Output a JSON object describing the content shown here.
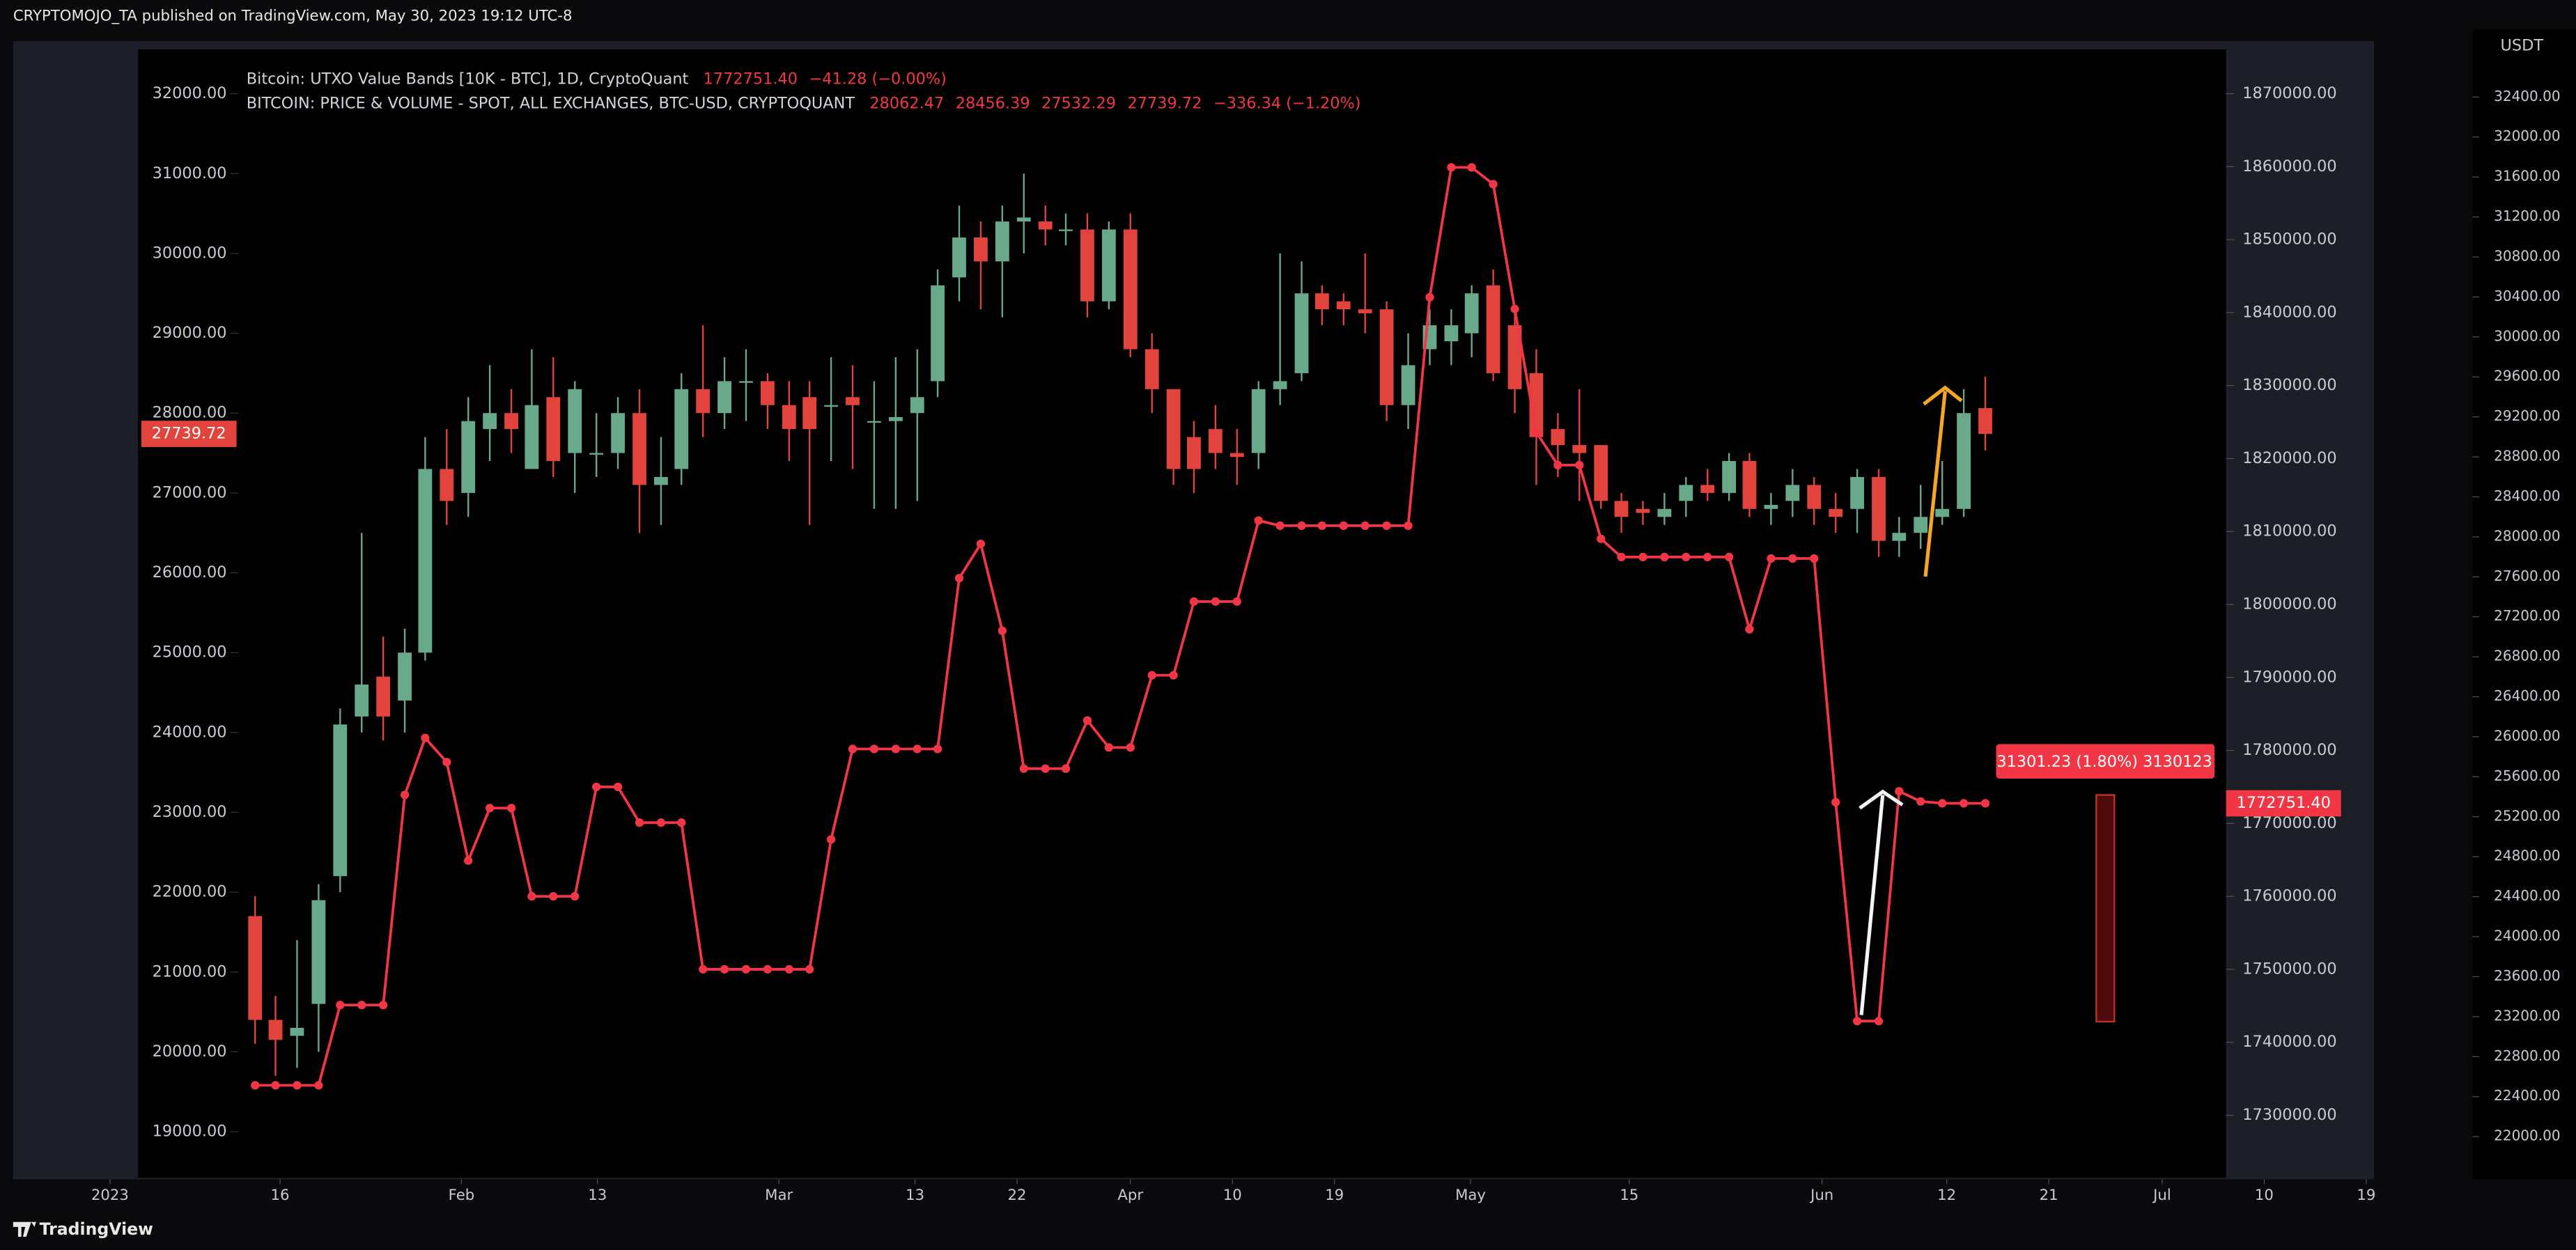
{
  "header": "CRYPTOMOJO_TA published on TradingView.com, May 30, 2023 19:12 UTC-8",
  "footer": "TradingView",
  "chart_data": {
    "type": "candlestick",
    "x": [
      13.8,
      15.6,
      17.5,
      19.4,
      21.3,
      23.2,
      25.1,
      27.0,
      28.8,
      30.7,
      32.6,
      34.5,
      36.4,
      38.2,
      40.1,
      42.0,
      43.9,
      45.8,
      47.7,
      49.6,
      51.4,
      53.3,
      55.2,
      57.1,
      59.0,
      60.9,
      62.7,
      64.6,
      66.5,
      68.4,
      70.3,
      72.2,
      74.0,
      75.9,
      77.8,
      79.7,
      81.6,
      83.5,
      85.3,
      87.2,
      89.1,
      91.0,
      92.9,
      94.8,
      96.6,
      98.5,
      100.4,
      102.3,
      104.2,
      106.1,
      107.9,
      109.8,
      111.7,
      113.6,
      115.5,
      117.4,
      119.3,
      121.1,
      123.0,
      124.9,
      126.8,
      128.7,
      130.6,
      132.5,
      134.3,
      136.2,
      138.1,
      140.0,
      141.9,
      143.8,
      145.6,
      147.5,
      149.4,
      151.3,
      153.2,
      155.1,
      157.0,
      158.8,
      160.7,
      162.6,
      164.5,
      166.4
    ],
    "xlim": [
      -8.7,
      201.4
    ],
    "xticks": [
      {
        "value": 1,
        "label": "2023"
      },
      16,
      {
        "value": 32,
        "label": "Feb"
      },
      {
        "value": 44,
        "label": "13"
      },
      {
        "value": 60,
        "label": "Mar"
      },
      {
        "value": 72,
        "label": "13"
      },
      {
        "value": 81,
        "label": "22"
      },
      {
        "value": 91,
        "label": "Apr"
      },
      {
        "value": 100,
        "label": "10"
      },
      {
        "value": 109,
        "label": "19"
      },
      {
        "value": 121,
        "label": "May"
      },
      {
        "value": 135,
        "label": "15"
      },
      {
        "value": 152,
        "label": "Jun"
      },
      {
        "value": 163,
        "label": "12"
      },
      {
        "value": 172,
        "label": "21"
      },
      {
        "value": 182,
        "label": "Jul"
      },
      {
        "value": 191,
        "label": "10"
      },
      {
        "value": 200,
        "label": "19"
      }
    ],
    "ylim": [
      18424,
      32556
    ],
    "yticks": [
      {
        "value": 19000,
        "label": "19000.00"
      },
      {
        "value": 20000,
        "label": "20000.00"
      },
      {
        "value": 21000,
        "label": "21000.00"
      },
      {
        "value": 22000,
        "label": "22000.00"
      },
      {
        "value": 23000,
        "label": "23000.00"
      },
      {
        "value": 24000,
        "label": "24000.00"
      },
      {
        "value": 25000,
        "label": "25000.00"
      },
      {
        "value": 26000,
        "label": "26000.00"
      },
      {
        "value": 27000,
        "label": "27000.00"
      },
      {
        "value": 28000,
        "label": "28000.00"
      },
      {
        "value": 29000,
        "label": "29000.00"
      },
      {
        "value": 30000,
        "label": "30000.00"
      },
      {
        "value": 31000,
        "label": "31000.00"
      },
      {
        "value": 32000,
        "label": "32000.00"
      }
    ],
    "y2lim": [
      1721447,
      1876077
    ],
    "y2ticks": [
      {
        "value": 1730000,
        "label": "1730000.00"
      },
      {
        "value": 1740000,
        "label": "1740000.00"
      },
      {
        "value": 1750000,
        "label": "1750000.00"
      },
      {
        "value": 1760000,
        "label": "1760000.00"
      },
      {
        "value": 1770000,
        "label": "1770000.00"
      },
      {
        "value": 1780000,
        "label": "1780000.00"
      },
      {
        "value": 1790000,
        "label": "1790000.00"
      },
      {
        "value": 1800000,
        "label": "1800000.00"
      },
      {
        "value": 1810000,
        "label": "1810000.00"
      },
      {
        "value": 1820000,
        "label": "1820000.00"
      },
      {
        "value": 1830000,
        "label": "1830000.00"
      },
      {
        "value": 1840000,
        "label": "1840000.00"
      },
      {
        "value": 1850000,
        "label": "1850000.00"
      },
      {
        "value": 1860000,
        "label": "1860000.00"
      },
      {
        "value": 1870000,
        "label": "1870000.00"
      }
    ],
    "y3label": "USDT",
    "y3lim": [
      21573,
      33074
    ],
    "y3ticks": [
      {
        "value": 22000,
        "label": "22000.00"
      },
      {
        "value": 22400,
        "label": "22400.00"
      },
      {
        "value": 22800,
        "label": "22800.00"
      },
      {
        "value": 23200,
        "label": "23200.00"
      },
      {
        "value": 23600,
        "label": "23600.00"
      },
      {
        "value": 24000,
        "label": "24000.00"
      },
      {
        "value": 24400,
        "label": "24400.00"
      },
      {
        "value": 24800,
        "label": "24800.00"
      },
      {
        "value": 25200,
        "label": "25200.00"
      },
      {
        "value": 25600,
        "label": "25600.00"
      },
      {
        "value": 26000,
        "label": "26000.00"
      },
      {
        "value": 26400,
        "label": "26400.00"
      },
      {
        "value": 26800,
        "label": "26800.00"
      },
      {
        "value": 27200,
        "label": "27200.00"
      },
      {
        "value": 27600,
        "label": "27600.00"
      },
      {
        "value": 28000,
        "label": "28000.00"
      },
      {
        "value": 28400,
        "label": "28400.00"
      },
      {
        "value": 28800,
        "label": "28800.00"
      },
      {
        "value": 29200,
        "label": "29200.00"
      },
      {
        "value": 29600,
        "label": "29600.00"
      },
      {
        "value": 30000,
        "label": "30000.00"
      },
      {
        "value": 30400,
        "label": "30400.00"
      },
      {
        "value": 30800,
        "label": "30800.00"
      },
      {
        "value": 31200,
        "label": "31200.00"
      },
      {
        "value": 31600,
        "label": "31600.00"
      },
      {
        "value": 32000,
        "label": "32000.00"
      },
      {
        "value": 32400,
        "label": "32400.00"
      }
    ],
    "series": [
      {
        "name": "BITCOIN: PRICE & VOLUME - SPOT, ALL EXCHANGES, BTC-USD, CRYPTOQUANT",
        "type": "candlestick",
        "up_color": "#68a98b",
        "down_color": "#e2433c",
        "legend_change": "−336.34 (−1.20%)",
        "open": [
          21700,
          20400,
          20200,
          20600,
          22200,
          24200,
          24700,
          24400,
          25000,
          27300,
          27000,
          27800,
          28000,
          27300,
          28200,
          27500,
          27500,
          27500,
          28000,
          27100,
          27300,
          28300,
          28000,
          28400,
          28400,
          28100,
          28200,
          28100,
          28200,
          27900,
          27900,
          28000,
          28400,
          29700,
          30200,
          29900,
          30400,
          30400,
          30300,
          30300,
          29400,
          30300,
          28800,
          28300,
          27700,
          27800,
          27500,
          27500,
          28300,
          28500,
          29500,
          29400,
          29300,
          29300,
          28100,
          28800,
          28900,
          29000,
          29600,
          29100,
          28500,
          27800,
          27600,
          27600,
          26900,
          26800,
          26700,
          26900,
          27100,
          27000,
          27400,
          26800,
          26900,
          27100,
          26800,
          26800,
          27200,
          26400,
          26500,
          26700,
          26800,
          28062.47
        ],
        "high": [
          21950,
          20700,
          21400,
          22100,
          24300,
          26500,
          25200,
          25300,
          27700,
          27800,
          28200,
          28600,
          28300,
          28800,
          28700,
          28400,
          28000,
          28200,
          28300,
          27700,
          28500,
          29100,
          28700,
          28800,
          28500,
          28400,
          28400,
          28700,
          28600,
          28400,
          28700,
          28800,
          29800,
          30600,
          30400,
          30600,
          31000,
          30600,
          30500,
          30500,
          30400,
          30500,
          29000,
          28300,
          27900,
          28100,
          27800,
          28400,
          30000,
          29900,
          29600,
          29500,
          30000,
          29400,
          29000,
          29300,
          29300,
          29600,
          29800,
          29300,
          28800,
          28000,
          28300,
          27600,
          27000,
          26900,
          27000,
          27200,
          27300,
          27500,
          27500,
          27000,
          27300,
          27200,
          27000,
          27300,
          27300,
          26700,
          27100,
          27400,
          28300,
          28456.39
        ],
        "low": [
          20100,
          19700,
          19800,
          20000,
          22000,
          24000,
          23900,
          24000,
          24900,
          26600,
          26700,
          27400,
          27500,
          27300,
          27200,
          27000,
          27200,
          27300,
          26500,
          26600,
          27100,
          27700,
          27800,
          27900,
          27800,
          27400,
          26600,
          27400,
          27300,
          26800,
          26800,
          26900,
          28200,
          29400,
          29300,
          29200,
          30000,
          30100,
          30100,
          29200,
          29300,
          28700,
          28000,
          27100,
          27000,
          27300,
          27100,
          27300,
          28100,
          28400,
          29100,
          29100,
          29000,
          27900,
          27800,
          28600,
          28600,
          28700,
          28400,
          28000,
          27100,
          27200,
          26900,
          26800,
          26500,
          26600,
          26600,
          26700,
          26900,
          26900,
          26700,
          26600,
          26700,
          26600,
          26500,
          26500,
          26200,
          26200,
          26300,
          26600,
          26700,
          27532.29
        ],
        "close": [
          20400,
          20150,
          20300,
          21900,
          24100,
          24600,
          24200,
          25000,
          27300,
          26900,
          27900,
          28000,
          27800,
          28100,
          27400,
          28300,
          27500,
          28000,
          27100,
          27200,
          28300,
          28000,
          28400,
          28400,
          28100,
          27800,
          27800,
          28100,
          28100,
          27900,
          27950,
          28200,
          29600,
          30200,
          29900,
          30400,
          30450,
          30300,
          30300,
          29400,
          30300,
          28800,
          28300,
          27300,
          27300,
          27500,
          27450,
          28300,
          28400,
          29500,
          29300,
          29300,
          29250,
          28100,
          28600,
          29100,
          29100,
          29500,
          28500,
          28300,
          27700,
          27600,
          27500,
          26900,
          26700,
          26750,
          26800,
          27100,
          27000,
          27400,
          26800,
          26850,
          27100,
          26800,
          26700,
          27200,
          26400,
          26500,
          26700,
          26800,
          28000,
          27739.72
        ]
      },
      {
        "name": "Bitcoin: UTXO Value Bands [10K - BTC], 1D, CryptoQuant",
        "type": "line",
        "axis": "y2",
        "color": "#f23645",
        "legend_value": "1772751.40",
        "legend_change": "−41.28 (−0.00%)",
        "values": [
          1734100,
          1734100,
          1734100,
          1734100,
          1745100,
          1745100,
          1745100,
          1773900,
          1781700,
          1778400,
          1764900,
          1772100,
          1772100,
          1760000,
          1760000,
          1760000,
          1775000,
          1775000,
          1770100,
          1770100,
          1770100,
          1750000,
          1750000,
          1750000,
          1750000,
          1750000,
          1750000,
          1767800,
          1780200,
          1780200,
          1780200,
          1780200,
          1780200,
          1803600,
          1808300,
          1796400,
          1777500,
          1777500,
          1777500,
          1784100,
          1780400,
          1780400,
          1790300,
          1790300,
          1800400,
          1800400,
          1800400,
          1811500,
          1810800,
          1810800,
          1810800,
          1810800,
          1810800,
          1810800,
          1810800,
          1842100,
          1859900,
          1859900,
          1857600,
          1840500,
          1823600,
          1819100,
          1819100,
          1809000,
          1806500,
          1806500,
          1806500,
          1806500,
          1806500,
          1806500,
          1796600,
          1806300,
          1806300,
          1806300,
          1772900,
          1742900,
          1742900,
          1774400,
          1773000,
          1772751.4,
          1772751.4,
          1772751.4
        ]
      }
    ],
    "annotations": [
      {
        "text": "31301.23 (1.80%) 3130123"
      }
    ]
  }
}
